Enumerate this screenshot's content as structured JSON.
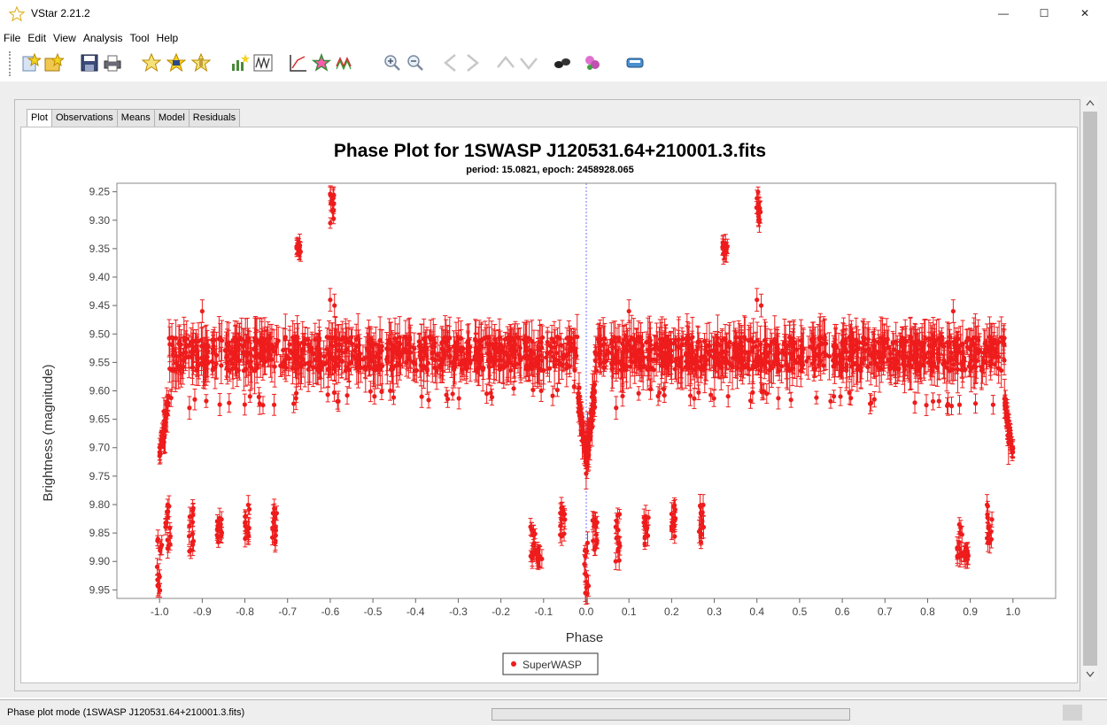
{
  "window": {
    "title": "VStar 2.21.2",
    "minimize": "—",
    "maximize": "☐",
    "close": "✕"
  },
  "menu": [
    "File",
    "Edit",
    "View",
    "Analysis",
    "Tool",
    "Help"
  ],
  "toolbar": {
    "icons": [
      "new-star-icon",
      "open-star-icon",
      "save-icon",
      "print-icon",
      "observations-icon",
      "means-icon",
      "model-icon",
      "period-search-icon",
      "wwz-icon",
      "plot-icon",
      "polynomial-icon",
      "filter-icon",
      "zoom-in-icon",
      "zoom-out-icon",
      "back-icon",
      "forward-icon",
      "up-icon",
      "down-icon",
      "binoculars-icon",
      "plugin-icon",
      "info-icon"
    ]
  },
  "tabs": [
    "Plot",
    "Observations",
    "Means",
    "Model",
    "Residuals"
  ],
  "active_tab": "Plot",
  "chart_data": {
    "type": "scatter",
    "title": "Phase Plot for 1SWASP J120531.64+210001.3.fits",
    "subtitle": "period: 15.0821, epoch: 2458928.065",
    "xlabel": "Phase",
    "ylabel": "Brightness (magnitude)",
    "xlim": [
      -1.1,
      1.1
    ],
    "ylim": [
      9.235,
      9.965
    ],
    "y_inverted": true,
    "xticks": [
      "-1.0",
      "-0.9",
      "-0.8",
      "-0.7",
      "-0.6",
      "-0.5",
      "-0.4",
      "-0.3",
      "-0.2",
      "-0.1",
      "0.0",
      "0.1",
      "0.2",
      "0.3",
      "0.4",
      "0.5",
      "0.6",
      "0.7",
      "0.8",
      "0.9",
      "1.0"
    ],
    "yticks": [
      "9.25",
      "9.30",
      "9.35",
      "9.40",
      "9.45",
      "9.50",
      "9.55",
      "9.60",
      "9.65",
      "9.70",
      "9.75",
      "9.80",
      "9.85",
      "9.90",
      "9.95"
    ],
    "vertical_marker_x": 0.0,
    "grid": false,
    "legend_position": "bottom-center",
    "series": [
      {
        "name": "SuperWASP",
        "color": "#ee1c1c",
        "baseline_magnitude": 9.535,
        "baseline_x_range": [
          -0.99,
          0.99
        ],
        "dip_profile": [
          {
            "x": -1.0,
            "y": 9.71
          },
          {
            "x": -0.98,
            "y": 9.62
          },
          {
            "x": -0.02,
            "y": 9.6
          },
          {
            "x": 0.0,
            "y": 9.72
          },
          {
            "x": 0.02,
            "y": 9.6
          },
          {
            "x": 0.98,
            "y": 9.62
          },
          {
            "x": 1.0,
            "y": 9.71
          }
        ],
        "faint_clusters": [
          {
            "x": -1.0,
            "y_min": 9.86,
            "y_max": 9.96
          },
          {
            "x": -0.98,
            "y_min": 9.8,
            "y_max": 9.88
          },
          {
            "x": -0.925,
            "y_min": 9.79,
            "y_max": 9.9
          },
          {
            "x": -0.86,
            "y_min": 9.82,
            "y_max": 9.87
          },
          {
            "x": -0.795,
            "y_min": 9.8,
            "y_max": 9.86
          },
          {
            "x": -0.73,
            "y_min": 9.8,
            "y_max": 9.87
          },
          {
            "x": -0.125,
            "y_min": 9.83,
            "y_max": 9.9
          },
          {
            "x": -0.11,
            "y_min": 9.88,
            "y_max": 9.9
          },
          {
            "x": -0.055,
            "y_min": 9.8,
            "y_max": 9.87
          },
          {
            "x": 0.0,
            "y_min": 9.86,
            "y_max": 9.96
          },
          {
            "x": 0.02,
            "y_min": 9.8,
            "y_max": 9.88
          },
          {
            "x": 0.075,
            "y_min": 9.79,
            "y_max": 9.9
          },
          {
            "x": 0.14,
            "y_min": 9.82,
            "y_max": 9.87
          },
          {
            "x": 0.205,
            "y_min": 9.8,
            "y_max": 9.86
          },
          {
            "x": 0.27,
            "y_min": 9.8,
            "y_max": 9.87
          },
          {
            "x": 0.875,
            "y_min": 9.83,
            "y_max": 9.9
          },
          {
            "x": 0.89,
            "y_min": 9.88,
            "y_max": 9.9
          },
          {
            "x": 0.945,
            "y_min": 9.8,
            "y_max": 9.87
          }
        ],
        "bright_clusters": [
          {
            "x": -0.675,
            "y_min": 9.34,
            "y_max": 9.36
          },
          {
            "x": -0.595,
            "y_min": 9.25,
            "y_max": 9.31
          },
          {
            "x": 0.325,
            "y_min": 9.34,
            "y_max": 9.36
          },
          {
            "x": 0.405,
            "y_min": 9.25,
            "y_max": 9.31
          }
        ],
        "outliers": [
          {
            "x": -0.93,
            "y": 9.63
          },
          {
            "x": -0.6,
            "y": 9.44
          },
          {
            "x": -0.59,
            "y": 9.45
          },
          {
            "x": 0.07,
            "y": 9.63
          },
          {
            "x": 0.4,
            "y": 9.44
          },
          {
            "x": 0.41,
            "y": 9.45
          },
          {
            "x": 0.1,
            "y": 9.46
          },
          {
            "x": -0.9,
            "y": 9.46
          },
          {
            "x": 0.86,
            "y": 9.46
          }
        ]
      }
    ]
  },
  "status": {
    "text": "Phase plot mode (1SWASP J120531.64+210001.3.fits)",
    "progress": 0
  }
}
